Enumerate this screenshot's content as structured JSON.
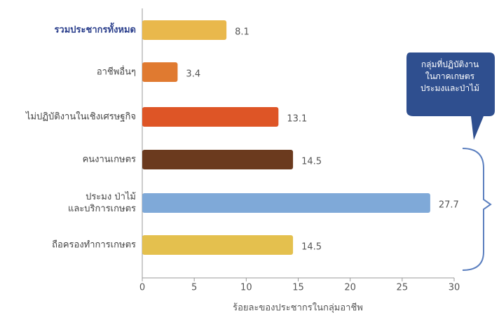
{
  "chart_data": {
    "type": "hbar",
    "categories": [
      "รวมประชากรทั้งหมด",
      "อาชีพอื่นๆ",
      "ไม่ปฏิบัติงานในเชิงเศรษฐกิจ",
      "คนงานเกษตร",
      "ประมง ป่าไม้\nและบริการเกษตร",
      "ถือครองทำการเกษตร"
    ],
    "values": [
      8.1,
      3.4,
      13.1,
      14.5,
      27.7,
      14.5
    ],
    "colors": [
      "#e9b84c",
      "#e07a30",
      "#de5526",
      "#6b3a1e",
      "#7fa9d8",
      "#e4c04e"
    ],
    "xlabel": "ร้อยละของประชากรในกลุ่มอาชีพ",
    "xlim": [
      0,
      30
    ],
    "xticks": [
      0,
      5,
      10,
      15,
      20,
      25,
      30
    ],
    "annotation": "กลุ่มที่ปฏิบัติงาน\nในภาคเกษตร\nประมงและป่าไม้"
  }
}
